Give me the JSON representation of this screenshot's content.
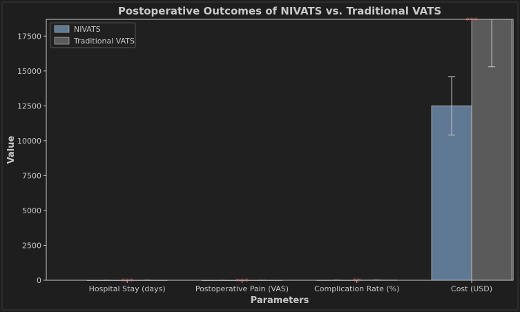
{
  "chart_data": {
    "type": "bar",
    "title": "Postoperative Outcomes of NIVATS vs. Traditional VATS",
    "xlabel": "Parameters",
    "ylabel": "Value",
    "categories": [
      "Hospital Stay (days)",
      "Postoperative Pain (VAS)",
      "Complication Rate (%)",
      "Cost (USD)"
    ],
    "series": [
      {
        "name": "NIVATS",
        "color": "#5f7894",
        "values": [
          4,
          3,
          8,
          12500
        ],
        "errors": [
          1,
          1,
          3,
          2100
        ]
      },
      {
        "name": "Traditional VATS",
        "color": "#5a5a5a",
        "values": [
          7,
          5,
          15,
          18700
        ],
        "errors": [
          1.5,
          1.5,
          5,
          3400
        ]
      }
    ],
    "significance": [
      "***",
      "***",
      "**",
      "***"
    ],
    "ylim": [
      0,
      18700
    ],
    "yticks": [
      0,
      2500,
      5000,
      7500,
      10000,
      12500,
      15000,
      17500
    ],
    "legend_position": "top-left",
    "grid": false,
    "colors": {
      "background": "#1e1e1e",
      "axes_face": "#202020",
      "axis": "#c8c8c8",
      "text": "#c8c8c8",
      "significance": "#c0504d",
      "errorbar": "#c8c8c8"
    }
  }
}
